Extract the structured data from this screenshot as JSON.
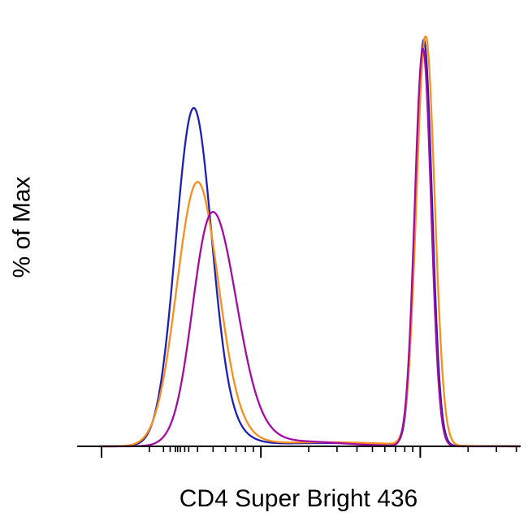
{
  "figure": {
    "xlabel": "CD4 Super Bright 436",
    "ylabel": "% of Max"
  },
  "chart_data": {
    "type": "line",
    "title": "",
    "xlabel": "CD4 Super Bright 436",
    "ylabel": "% of Max",
    "x_scale": "biexponential log-like, no numeric tick labels shown",
    "ylim": [
      0,
      100
    ],
    "grid": false,
    "legend": false,
    "description": "Overlaid flow-cytometry histograms, three samples, each bimodal: a CD4-negative peak at low fluorescence and a CD4-positive peak at high fluorescence normalized to 100% of max.",
    "series": [
      {
        "name": "blue-sample",
        "color": "#1f1fb4",
        "peaks": [
          {
            "x": 0.262,
            "sigma": 0.04,
            "height_pct": 78
          },
          {
            "x": 0.305,
            "sigma": 0.055,
            "height_pct": 6
          },
          {
            "x": 0.56,
            "sigma": 0.15,
            "height_pct": 0.8
          },
          {
            "x": 0.783,
            "sigma": 0.0185,
            "height_pct": 99
          }
        ]
      },
      {
        "name": "orange-sample",
        "color": "#f78f1e",
        "peaks": [
          {
            "x": 0.27,
            "sigma": 0.046,
            "height_pct": 61
          },
          {
            "x": 0.32,
            "sigma": 0.055,
            "height_pct": 5
          },
          {
            "x": 0.56,
            "sigma": 0.15,
            "height_pct": 1.0
          },
          {
            "x": 0.787,
            "sigma": 0.0205,
            "height_pct": 100
          }
        ]
      },
      {
        "name": "purple-sample",
        "color": "#a40aa4",
        "peaks": [
          {
            "x": 0.315,
            "sigma": 0.048,
            "height_pct": 50
          },
          {
            "x": 0.283,
            "sigma": 0.03,
            "height_pct": 10
          },
          {
            "x": 0.395,
            "sigma": 0.045,
            "height_pct": 3
          },
          {
            "x": 0.5,
            "sigma": 0.1,
            "height_pct": 1.2
          },
          {
            "x": 0.781,
            "sigma": 0.0185,
            "height_pct": 97
          }
        ]
      }
    ],
    "axis_ticks": {
      "major": [
        0.055,
        0.415,
        0.775
      ],
      "minor": [
        0.163,
        0.195,
        0.21,
        0.222,
        0.227,
        0.233,
        0.243,
        0.252,
        0.272,
        0.307,
        0.335,
        0.359,
        0.38,
        0.398,
        0.523,
        0.587,
        0.632,
        0.667,
        0.695,
        0.719,
        0.74,
        0.758,
        0.883,
        0.947,
        0.992
      ]
    },
    "axis_color": "#000000"
  }
}
